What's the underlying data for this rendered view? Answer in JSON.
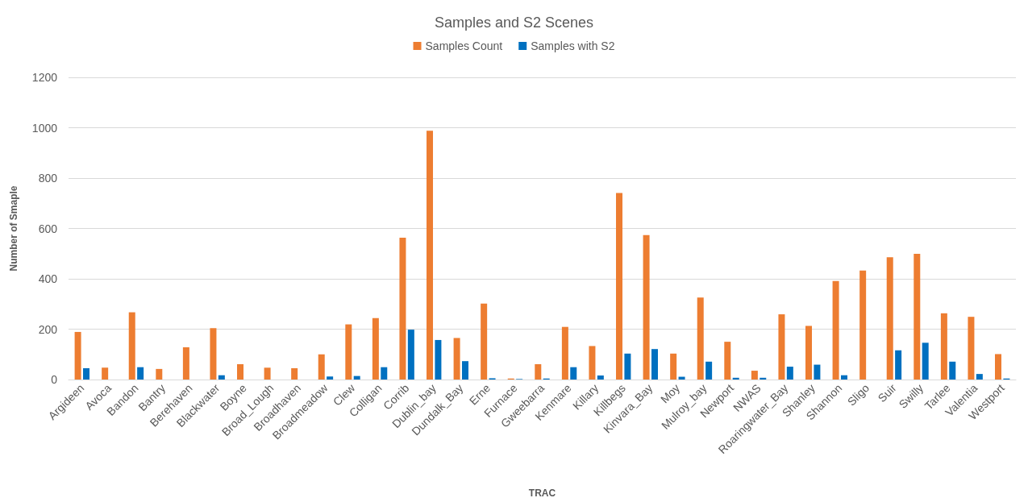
{
  "chart_data": {
    "type": "bar",
    "title": "Samples and S2 Scenes",
    "xlabel": "TRAC",
    "ylabel": "Number of Smaple",
    "categories": [
      "Argideen",
      "Avoca",
      "Bandon",
      "Bantry",
      "Berehaven",
      "Blackwater",
      "Boyne",
      "Broad_Lough",
      "Broadhaven",
      "Broadmeadow",
      "Clew",
      "Colligan",
      "Corrib",
      "Dublin_bay",
      "Dundalk_Bay",
      "Erne",
      "Furnace",
      "Gweebarra",
      "Kenmare",
      "Killary",
      "Killbegs",
      "Kinvara_Bay",
      "Moy",
      "Mulroy_bay",
      "Newport",
      "NWAS",
      "Roaringwater_Bay",
      "Shanley",
      "Shannon",
      "Sligo",
      "Suir",
      "Swilly",
      "Tarlee",
      "Valentia",
      "Westport"
    ],
    "series": [
      {
        "name": "Samples Count",
        "color": "#ed7d31",
        "values": [
          189,
          47,
          267,
          42,
          128,
          204,
          61,
          47,
          45,
          100,
          219,
          244,
          563,
          988,
          165,
          302,
          4,
          61,
          209,
          133,
          741,
          574,
          103,
          326,
          150,
          35,
          259,
          213,
          391,
          433,
          486,
          499,
          263,
          249,
          101
        ]
      },
      {
        "name": "Samples with S2",
        "color": "#0070c0",
        "values": [
          45,
          0,
          49,
          0,
          0,
          17,
          0,
          0,
          0,
          12,
          14,
          49,
          198,
          157,
          73,
          5,
          2,
          4,
          49,
          16,
          103,
          121,
          11,
          71,
          7,
          7,
          51,
          59,
          17,
          0,
          116,
          146,
          71,
          22,
          4
        ]
      }
    ],
    "ylim": [
      0,
      1200
    ],
    "yticks": [
      0,
      200,
      400,
      600,
      800,
      1000,
      1200
    ],
    "grid": "y",
    "legend": "top"
  }
}
